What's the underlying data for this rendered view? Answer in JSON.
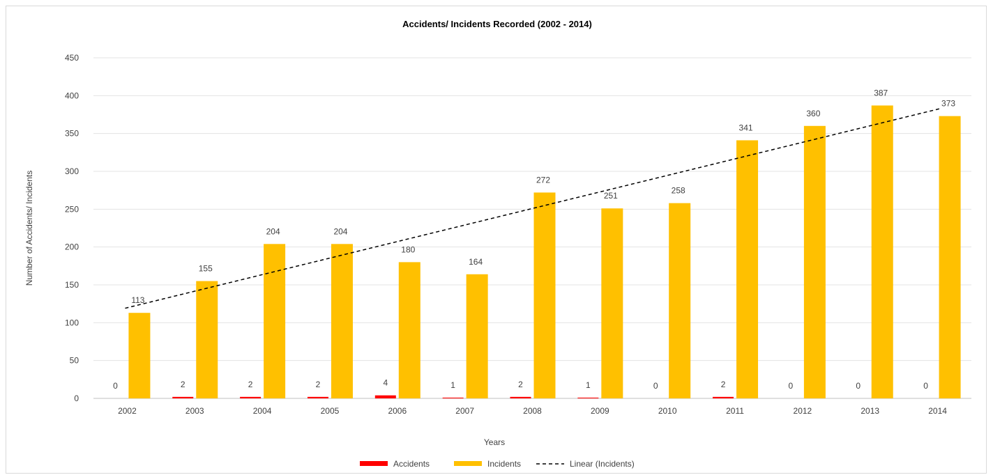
{
  "chart_data": {
    "type": "bar",
    "title": "Accidents/ Incidents Recorded (2002 - 2014)",
    "xlabel": "Years",
    "ylabel": "Number of Accidents/ Incidents",
    "ylim": [
      0,
      450
    ],
    "yticks": [
      0,
      50,
      100,
      150,
      200,
      250,
      300,
      350,
      400,
      450
    ],
    "grid": true,
    "legend_position": "bottom",
    "categories": [
      "2002",
      "2003",
      "2004",
      "2005",
      "2006",
      "2007",
      "2008",
      "2009",
      "2010",
      "2011",
      "2012",
      "2013",
      "2014"
    ],
    "series": [
      {
        "name": "Accidents",
        "color": "#ff0000",
        "values": [
          0,
          2,
          2,
          2,
          4,
          1,
          2,
          1,
          0,
          2,
          0,
          0,
          0
        ]
      },
      {
        "name": "Incidents",
        "color": "#ffc000",
        "values": [
          113,
          155,
          204,
          204,
          180,
          164,
          272,
          251,
          258,
          341,
          360,
          387,
          373
        ]
      }
    ],
    "trendline": {
      "name": "Linear (Incidents)",
      "series": "Incidents",
      "style": "dashed",
      "color": "#000000"
    }
  }
}
